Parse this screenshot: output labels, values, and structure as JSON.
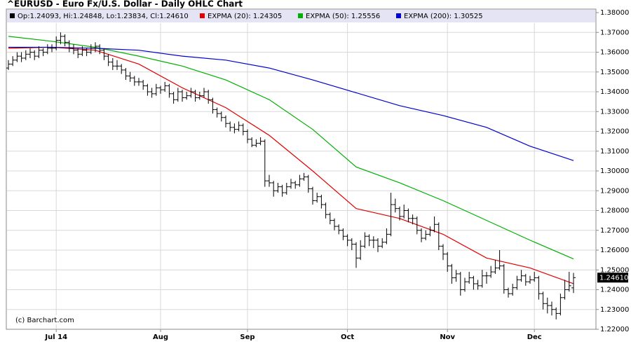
{
  "chart_data": {
    "type": "ohlc",
    "title": "^EURUSD - Euro Fx/U.S. Dollar - Daily OHLC Chart",
    "ohlc_label": "Op:1.24093, Hi:1.24848, Lo:1.23834, Cl:1.24610",
    "ohlc_color": "#000000",
    "copyright": "(c) Barchart.com",
    "last_label": {
      "value": 1.2461,
      "label": "1.24610"
    },
    "ylim": [
      1.22,
      1.38
    ],
    "yticks": [
      {
        "value": 1.22,
        "label": "1.22000"
      },
      {
        "value": 1.23,
        "label": "1.23000"
      },
      {
        "value": 1.24,
        "label": "1.24000"
      },
      {
        "value": 1.25,
        "label": "1.25000"
      },
      {
        "value": 1.26,
        "label": "1.26000"
      },
      {
        "value": 1.27,
        "label": "1.27000"
      },
      {
        "value": 1.28,
        "label": "1.28000"
      },
      {
        "value": 1.29,
        "label": "1.29000"
      },
      {
        "value": 1.3,
        "label": "1.30000"
      },
      {
        "value": 1.31,
        "label": "1.31000"
      },
      {
        "value": 1.32,
        "label": "1.32000"
      },
      {
        "value": 1.33,
        "label": "1.33000"
      },
      {
        "value": 1.34,
        "label": "1.34000"
      },
      {
        "value": 1.35,
        "label": "1.35000"
      },
      {
        "value": 1.36,
        "label": "1.36000"
      },
      {
        "value": 1.37,
        "label": "1.37000"
      },
      {
        "value": 1.38,
        "label": "1.38000"
      }
    ],
    "grid": true,
    "categories": [
      null,
      null,
      null,
      null,
      null,
      null,
      null,
      null,
      null,
      null,
      null,
      "Jul 14",
      null,
      null,
      null,
      null,
      null,
      null,
      null,
      null,
      null,
      null,
      null,
      null,
      null,
      null,
      null,
      null,
      null,
      null,
      null,
      null,
      null,
      null,
      null,
      "Aug",
      null,
      null,
      null,
      null,
      null,
      null,
      null,
      null,
      null,
      null,
      null,
      null,
      null,
      null,
      null,
      null,
      null,
      null,
      null,
      "Sep",
      null,
      null,
      null,
      null,
      null,
      null,
      null,
      null,
      null,
      null,
      null,
      null,
      null,
      null,
      null,
      null,
      null,
      null,
      null,
      null,
      null,
      null,
      "Oct",
      null,
      null,
      null,
      null,
      null,
      null,
      null,
      null,
      null,
      null,
      null,
      null,
      null,
      null,
      null,
      null,
      null,
      null,
      null,
      null,
      null,
      null,
      "Nov",
      null,
      null,
      null,
      null,
      null,
      null,
      null,
      null,
      null,
      null,
      null,
      null,
      null,
      null,
      null,
      null,
      null,
      null,
      null,
      "Dec",
      null,
      null,
      null,
      null,
      null,
      null,
      null,
      null,
      null
    ],
    "ohlc": [
      [
        1.352,
        1.356,
        1.351,
        1.354
      ],
      [
        1.354,
        1.358,
        1.353,
        1.356
      ],
      [
        1.356,
        1.36,
        1.355,
        1.358
      ],
      [
        1.358,
        1.36,
        1.355,
        1.357
      ],
      [
        1.357,
        1.361,
        1.356,
        1.359
      ],
      [
        1.359,
        1.362,
        1.357,
        1.36
      ],
      [
        1.36,
        1.361,
        1.356,
        1.358
      ],
      [
        1.358,
        1.363,
        1.357,
        1.361
      ],
      [
        1.361,
        1.362,
        1.358,
        1.36
      ],
      [
        1.36,
        1.364,
        1.359,
        1.362
      ],
      [
        1.362,
        1.364,
        1.36,
        1.362
      ],
      [
        1.362,
        1.368,
        1.361,
        1.366
      ],
      [
        1.366,
        1.37,
        1.364,
        1.368
      ],
      [
        1.368,
        1.369,
        1.363,
        1.365
      ],
      [
        1.365,
        1.366,
        1.36,
        1.362
      ],
      [
        1.362,
        1.364,
        1.359,
        1.361
      ],
      [
        1.361,
        1.362,
        1.357,
        1.359
      ],
      [
        1.359,
        1.363,
        1.358,
        1.361
      ],
      [
        1.361,
        1.362,
        1.358,
        1.36
      ],
      [
        1.36,
        1.364,
        1.359,
        1.362
      ],
      [
        1.362,
        1.365,
        1.36,
        1.363
      ],
      [
        1.363,
        1.364,
        1.359,
        1.361
      ],
      [
        1.361,
        1.362,
        1.356,
        1.358
      ],
      [
        1.358,
        1.359,
        1.353,
        1.355
      ],
      [
        1.355,
        1.357,
        1.351,
        1.353
      ],
      [
        1.353,
        1.356,
        1.351,
        1.353
      ],
      [
        1.353,
        1.354,
        1.349,
        1.351
      ],
      [
        1.351,
        1.352,
        1.346,
        1.348
      ],
      [
        1.348,
        1.35,
        1.345,
        1.347
      ],
      [
        1.347,
        1.348,
        1.343,
        1.345
      ],
      [
        1.345,
        1.347,
        1.343,
        1.345
      ],
      [
        1.345,
        1.346,
        1.341,
        1.343
      ],
      [
        1.343,
        1.344,
        1.338,
        1.34
      ],
      [
        1.34,
        1.342,
        1.337,
        1.339
      ],
      [
        1.339,
        1.344,
        1.338,
        1.342
      ],
      [
        1.342,
        1.343,
        1.339,
        1.341
      ],
      [
        1.341,
        1.345,
        1.34,
        1.343
      ],
      [
        1.343,
        1.344,
        1.337,
        1.339
      ],
      [
        1.339,
        1.34,
        1.334,
        1.336
      ],
      [
        1.336,
        1.342,
        1.335,
        1.34
      ],
      [
        1.34,
        1.341,
        1.335,
        1.337
      ],
      [
        1.337,
        1.34,
        1.336,
        1.338
      ],
      [
        1.338,
        1.342,
        1.337,
        1.34
      ],
      [
        1.34,
        1.341,
        1.335,
        1.337
      ],
      [
        1.337,
        1.34,
        1.336,
        1.338
      ],
      [
        1.338,
        1.342,
        1.337,
        1.34
      ],
      [
        1.34,
        1.341,
        1.334,
        1.336
      ],
      [
        1.336,
        1.337,
        1.329,
        1.331
      ],
      [
        1.331,
        1.332,
        1.327,
        1.329
      ],
      [
        1.329,
        1.33,
        1.325,
        1.327
      ],
      [
        1.327,
        1.328,
        1.322,
        1.324
      ],
      [
        1.324,
        1.325,
        1.32,
        1.322
      ],
      [
        1.322,
        1.324,
        1.319,
        1.321
      ],
      [
        1.321,
        1.325,
        1.32,
        1.323
      ],
      [
        1.323,
        1.324,
        1.318,
        1.32
      ],
      [
        1.32,
        1.321,
        1.314,
        1.316
      ],
      [
        1.316,
        1.317,
        1.312,
        1.313
      ],
      [
        1.313,
        1.316,
        1.312,
        1.314
      ],
      [
        1.314,
        1.317,
        1.313,
        1.315
      ],
      [
        1.315,
        1.316,
        1.292,
        1.295
      ],
      [
        1.295,
        1.298,
        1.292,
        1.294
      ],
      [
        1.294,
        1.295,
        1.287,
        1.29
      ],
      [
        1.29,
        1.294,
        1.289,
        1.292
      ],
      [
        1.292,
        1.293,
        1.287,
        1.289
      ],
      [
        1.289,
        1.294,
        1.288,
        1.292
      ],
      [
        1.292,
        1.296,
        1.291,
        1.294
      ],
      [
        1.294,
        1.295,
        1.291,
        1.293
      ],
      [
        1.293,
        1.298,
        1.292,
        1.296
      ],
      [
        1.296,
        1.299,
        1.295,
        1.297
      ],
      [
        1.297,
        1.298,
        1.289,
        1.291
      ],
      [
        1.291,
        1.292,
        1.283,
        1.285
      ],
      [
        1.285,
        1.289,
        1.284,
        1.287
      ],
      [
        1.287,
        1.288,
        1.281,
        1.283
      ],
      [
        1.283,
        1.284,
        1.276,
        1.278
      ],
      [
        1.278,
        1.279,
        1.273,
        1.275
      ],
      [
        1.275,
        1.276,
        1.27,
        1.272
      ],
      [
        1.272,
        1.273,
        1.268,
        1.27
      ],
      [
        1.27,
        1.271,
        1.265,
        1.267
      ],
      [
        1.267,
        1.268,
        1.262,
        1.265
      ],
      [
        1.265,
        1.266,
        1.26,
        1.263
      ],
      [
        1.263,
        1.264,
        1.251,
        1.256
      ],
      [
        1.256,
        1.265,
        1.255,
        1.262
      ],
      [
        1.262,
        1.269,
        1.261,
        1.267
      ],
      [
        1.267,
        1.268,
        1.262,
        1.265
      ],
      [
        1.265,
        1.267,
        1.261,
        1.265
      ],
      [
        1.265,
        1.266,
        1.259,
        1.262
      ],
      [
        1.262,
        1.266,
        1.261,
        1.264
      ],
      [
        1.264,
        1.271,
        1.263,
        1.268
      ],
      [
        1.268,
        1.289,
        1.267,
        1.283
      ],
      [
        1.283,
        1.286,
        1.279,
        1.281
      ],
      [
        1.281,
        1.282,
        1.275,
        1.277
      ],
      [
        1.277,
        1.283,
        1.276,
        1.28
      ],
      [
        1.28,
        1.281,
        1.274,
        1.276
      ],
      [
        1.276,
        1.278,
        1.273,
        1.276
      ],
      [
        1.276,
        1.277,
        1.268,
        1.27
      ],
      [
        1.27,
        1.271,
        1.264,
        1.266
      ],
      [
        1.266,
        1.27,
        1.265,
        1.268
      ],
      [
        1.268,
        1.272,
        1.267,
        1.27
      ],
      [
        1.27,
        1.277,
        1.269,
        1.273
      ],
      [
        1.273,
        1.274,
        1.26,
        1.262
      ],
      [
        1.262,
        1.263,
        1.255,
        1.258
      ],
      [
        1.258,
        1.259,
        1.249,
        1.252
      ],
      [
        1.252,
        1.253,
        1.243,
        1.246
      ],
      [
        1.246,
        1.25,
        1.244,
        1.248
      ],
      [
        1.248,
        1.249,
        1.237,
        1.24
      ],
      [
        1.24,
        1.246,
        1.239,
        1.244
      ],
      [
        1.244,
        1.249,
        1.243,
        1.246
      ],
      [
        1.246,
        1.247,
        1.24,
        1.243
      ],
      [
        1.243,
        1.245,
        1.24,
        1.242
      ],
      [
        1.242,
        1.25,
        1.241,
        1.247
      ],
      [
        1.247,
        1.249,
        1.243,
        1.247
      ],
      [
        1.247,
        1.252,
        1.246,
        1.249
      ],
      [
        1.249,
        1.255,
        1.248,
        1.251
      ],
      [
        1.251,
        1.26,
        1.25,
        1.252
      ],
      [
        1.252,
        1.253,
        1.238,
        1.24
      ],
      [
        1.24,
        1.241,
        1.236,
        1.238
      ],
      [
        1.238,
        1.243,
        1.237,
        1.241
      ],
      [
        1.241,
        1.247,
        1.24,
        1.245
      ],
      [
        1.245,
        1.25,
        1.244,
        1.247
      ],
      [
        1.247,
        1.248,
        1.242,
        1.244
      ],
      [
        1.244,
        1.247,
        1.243,
        1.245
      ],
      [
        1.245,
        1.249,
        1.244,
        1.246
      ],
      [
        1.246,
        1.247,
        1.235,
        1.238
      ],
      [
        1.238,
        1.239,
        1.23,
        1.233
      ],
      [
        1.233,
        1.236,
        1.228,
        1.232
      ],
      [
        1.232,
        1.234,
        1.227,
        1.23
      ],
      [
        1.23,
        1.231,
        1.225,
        1.228
      ],
      [
        1.228,
        1.238,
        1.227,
        1.236
      ],
      [
        1.236,
        1.245,
        1.235,
        1.24
      ],
      [
        1.24,
        1.249,
        1.239,
        1.242
      ],
      [
        1.24093,
        1.24848,
        1.23834,
        1.2461
      ]
    ],
    "series": [
      {
        "name": "EXPMA (20): 1.24305",
        "color": "#e00000",
        "x": [
          0,
          10,
          20,
          30,
          40,
          50,
          60,
          70,
          80,
          90,
          100,
          110,
          120,
          130
        ],
        "values": [
          1.362,
          1.3625,
          1.361,
          1.354,
          1.342,
          1.332,
          1.318,
          1.3,
          1.281,
          1.276,
          1.268,
          1.256,
          1.251,
          1.24305
        ]
      },
      {
        "name": "EXPMA (50): 1.25556",
        "color": "#00b000",
        "x": [
          0,
          10,
          20,
          30,
          40,
          50,
          60,
          70,
          80,
          90,
          100,
          110,
          120,
          130
        ],
        "values": [
          1.368,
          1.3655,
          1.3625,
          1.358,
          1.353,
          1.346,
          1.336,
          1.321,
          1.302,
          1.294,
          1.285,
          1.275,
          1.265,
          1.25556
        ]
      },
      {
        "name": "EXPMA (200): 1.30525",
        "color": "#0000d0",
        "x": [
          0,
          10,
          20,
          30,
          40,
          50,
          60,
          70,
          80,
          90,
          100,
          110,
          120,
          130
        ],
        "values": [
          1.3625,
          1.3625,
          1.362,
          1.361,
          1.358,
          1.356,
          1.352,
          1.346,
          1.3395,
          1.333,
          1.328,
          1.322,
          1.3125,
          1.30525
        ]
      }
    ]
  }
}
